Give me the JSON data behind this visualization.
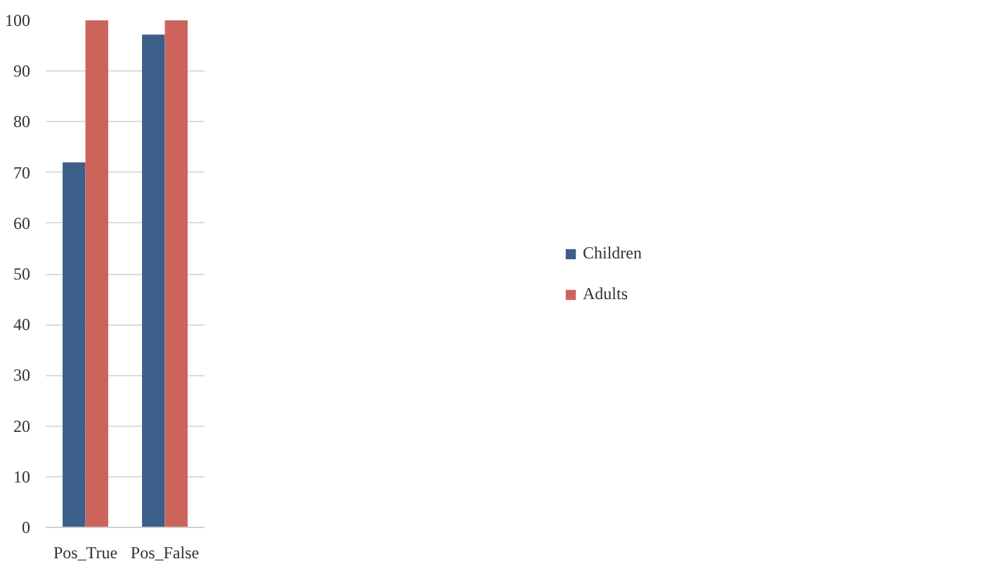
{
  "chart_data": {
    "type": "bar",
    "categories": [
      "Pos_True",
      "Pos_False"
    ],
    "series": [
      {
        "name": "Children",
        "color": "#3b5f89",
        "values": [
          72,
          97.2
        ]
      },
      {
        "name": "Adults",
        "color": "#cd645c",
        "values": [
          100,
          100
        ]
      }
    ],
    "ylim": [
      0,
      100
    ],
    "yticks": [
      0,
      10,
      20,
      30,
      40,
      50,
      60,
      70,
      80,
      90,
      100
    ],
    "grid": "y",
    "legend": "right"
  }
}
